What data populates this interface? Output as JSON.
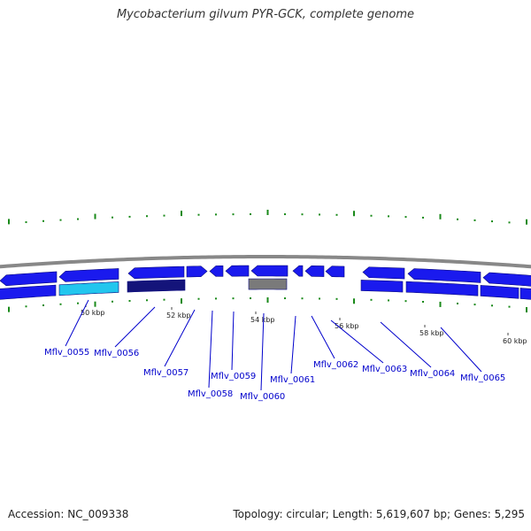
{
  "title": "Mycobacterium gilvum PYR-GCK, complete genome",
  "footer": {
    "accession": "Accession: NC_009338",
    "topology": "Topology: circular; Length: 5,619,607 bp; Genes: 5,295"
  },
  "colors": {
    "cds": "#1a1aee",
    "highlight_cyan": "#22c6ee",
    "highlight_navy": "#14147a",
    "highlight_gray": "#7a7a7a",
    "gc_skew_tick": "#1a8a1a",
    "backbone": "#888888",
    "label": "#0000cc"
  },
  "scale_labels": [
    "50 kbp",
    "52 kbp",
    "54 kbp",
    "56 kbp",
    "58 kbp",
    "60 kbp"
  ],
  "gene_labels": [
    "Mflv_0055",
    "Mflv_0056",
    "Mflv_0057",
    "Mflv_0058",
    "Mflv_0059",
    "Mflv_0060",
    "Mflv_0061",
    "Mflv_0062",
    "Mflv_0063",
    "Mflv_0064",
    "Mflv_0065"
  ]
}
